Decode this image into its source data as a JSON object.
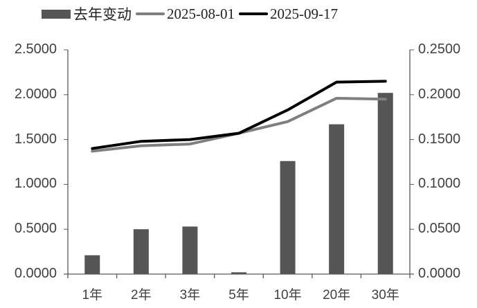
{
  "legend": {
    "items": [
      {
        "label": "去年变动",
        "type": "bar",
        "color": "#555555"
      },
      {
        "label": "2025-08-01",
        "type": "line",
        "color": "#7f7f7f"
      },
      {
        "label": "2025-09-17",
        "type": "line",
        "color": "#000000"
      }
    ]
  },
  "axes": {
    "left_ticks": [
      "2.5000",
      "2.0000",
      "1.5000",
      "1.0000",
      "0.5000",
      "0.0000"
    ],
    "right_ticks": [
      "0.2500",
      "0.2000",
      "0.1500",
      "0.1000",
      "0.0500",
      "0.0000"
    ],
    "x_ticks": [
      "1年",
      "2年",
      "3年",
      "5年",
      "10年",
      "20年",
      "30年"
    ]
  },
  "chart_data": {
    "type": "bar+line",
    "title": "",
    "xlabel": "",
    "ylabel": "",
    "categories": [
      "1年",
      "2年",
      "3年",
      "5年",
      "10年",
      "20年",
      "30年"
    ],
    "series": [
      {
        "name": "去年变动",
        "type": "bar",
        "axis": "right",
        "color": "#555555",
        "values": [
          0.021,
          0.05,
          0.053,
          0.002,
          0.126,
          0.167,
          0.202
        ]
      },
      {
        "name": "2025-08-01",
        "type": "line",
        "axis": "left",
        "color": "#7f7f7f",
        "values": [
          1.37,
          1.43,
          1.45,
          1.57,
          1.7,
          1.96,
          1.95
        ]
      },
      {
        "name": "2025-09-17",
        "type": "line",
        "axis": "left",
        "color": "#000000",
        "values": [
          1.4,
          1.48,
          1.5,
          1.57,
          1.83,
          2.14,
          2.15
        ]
      }
    ],
    "ylim_left": [
      0,
      2.5
    ],
    "ylim_right": [
      0,
      0.25
    ],
    "grid": false,
    "legend_position": "top"
  }
}
